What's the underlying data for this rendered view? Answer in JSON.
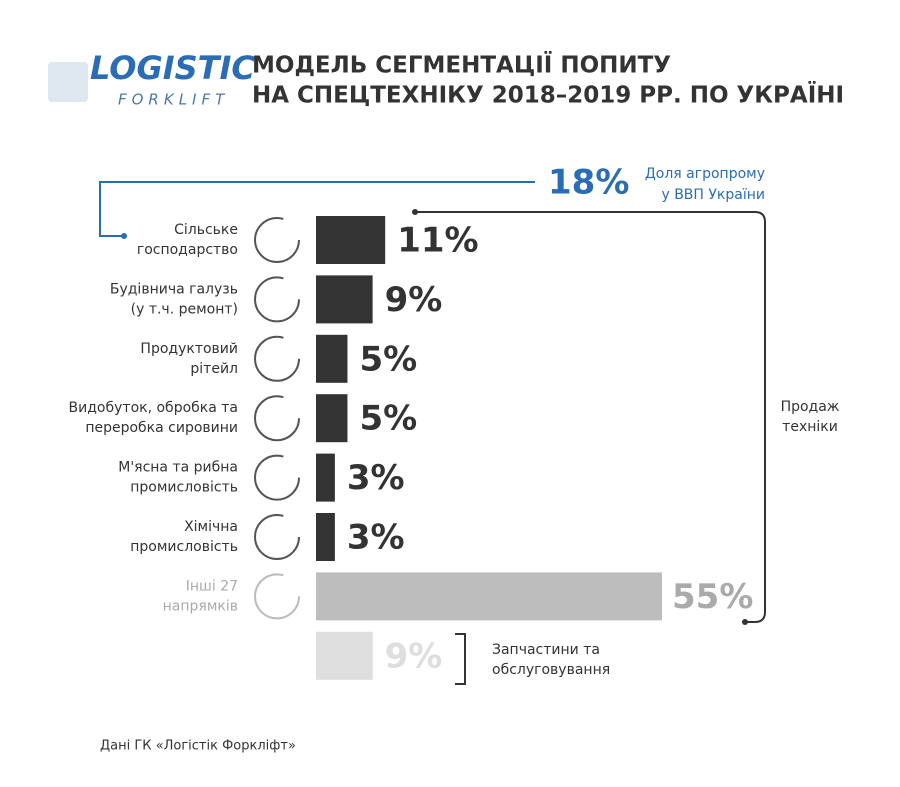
{
  "header": {
    "logo": [
      "LOGISTIC",
      "FORKLIFT"
    ],
    "title": [
      "МОДЕЛЬ СЕГМЕНТАЦІЇ ПОПИТУ",
      "НА СПЕЦТЕХНІКУ 2018–2019 РР. ПО УКРАЇНІ"
    ]
  },
  "chart_data": {
    "type": "bar",
    "orientation": "horizontal",
    "categories": [
      [
        "Сільське",
        "господарство"
      ],
      [
        "Будівнича галузь",
        "(у т.ч. ремонт)"
      ],
      [
        "Продуктовий",
        "рітейл"
      ],
      [
        "Видобуток, обробка та",
        "переробка сировини"
      ],
      [
        "М'ясна та рибна",
        "промисловість"
      ],
      [
        "Хімічна",
        "промисловість"
      ],
      [
        "Інші 27",
        "напрямків"
      ],
      null
    ],
    "values": [
      11,
      9,
      5,
      5,
      3,
      3,
      55,
      9
    ],
    "value_labels": [
      "11%",
      "9%",
      "5%",
      "5%",
      "3%",
      "3%",
      "55%",
      "9%"
    ],
    "colors": [
      "#333333",
      "#333333",
      "#333333",
      "#333333",
      "#333333",
      "#333333",
      "#bdbdbd",
      "#dedede"
    ],
    "annotations": {
      "agro": {
        "value": 18,
        "label": "18%",
        "text": [
          "Доля агропрому",
          "у ВВП України"
        ]
      },
      "sales": [
        "Продаж",
        "техніки"
      ],
      "parts": [
        "Запчастини та",
        "обслуговування"
      ]
    }
  },
  "source": "Дані ГК «Логістік Форкліфт»"
}
